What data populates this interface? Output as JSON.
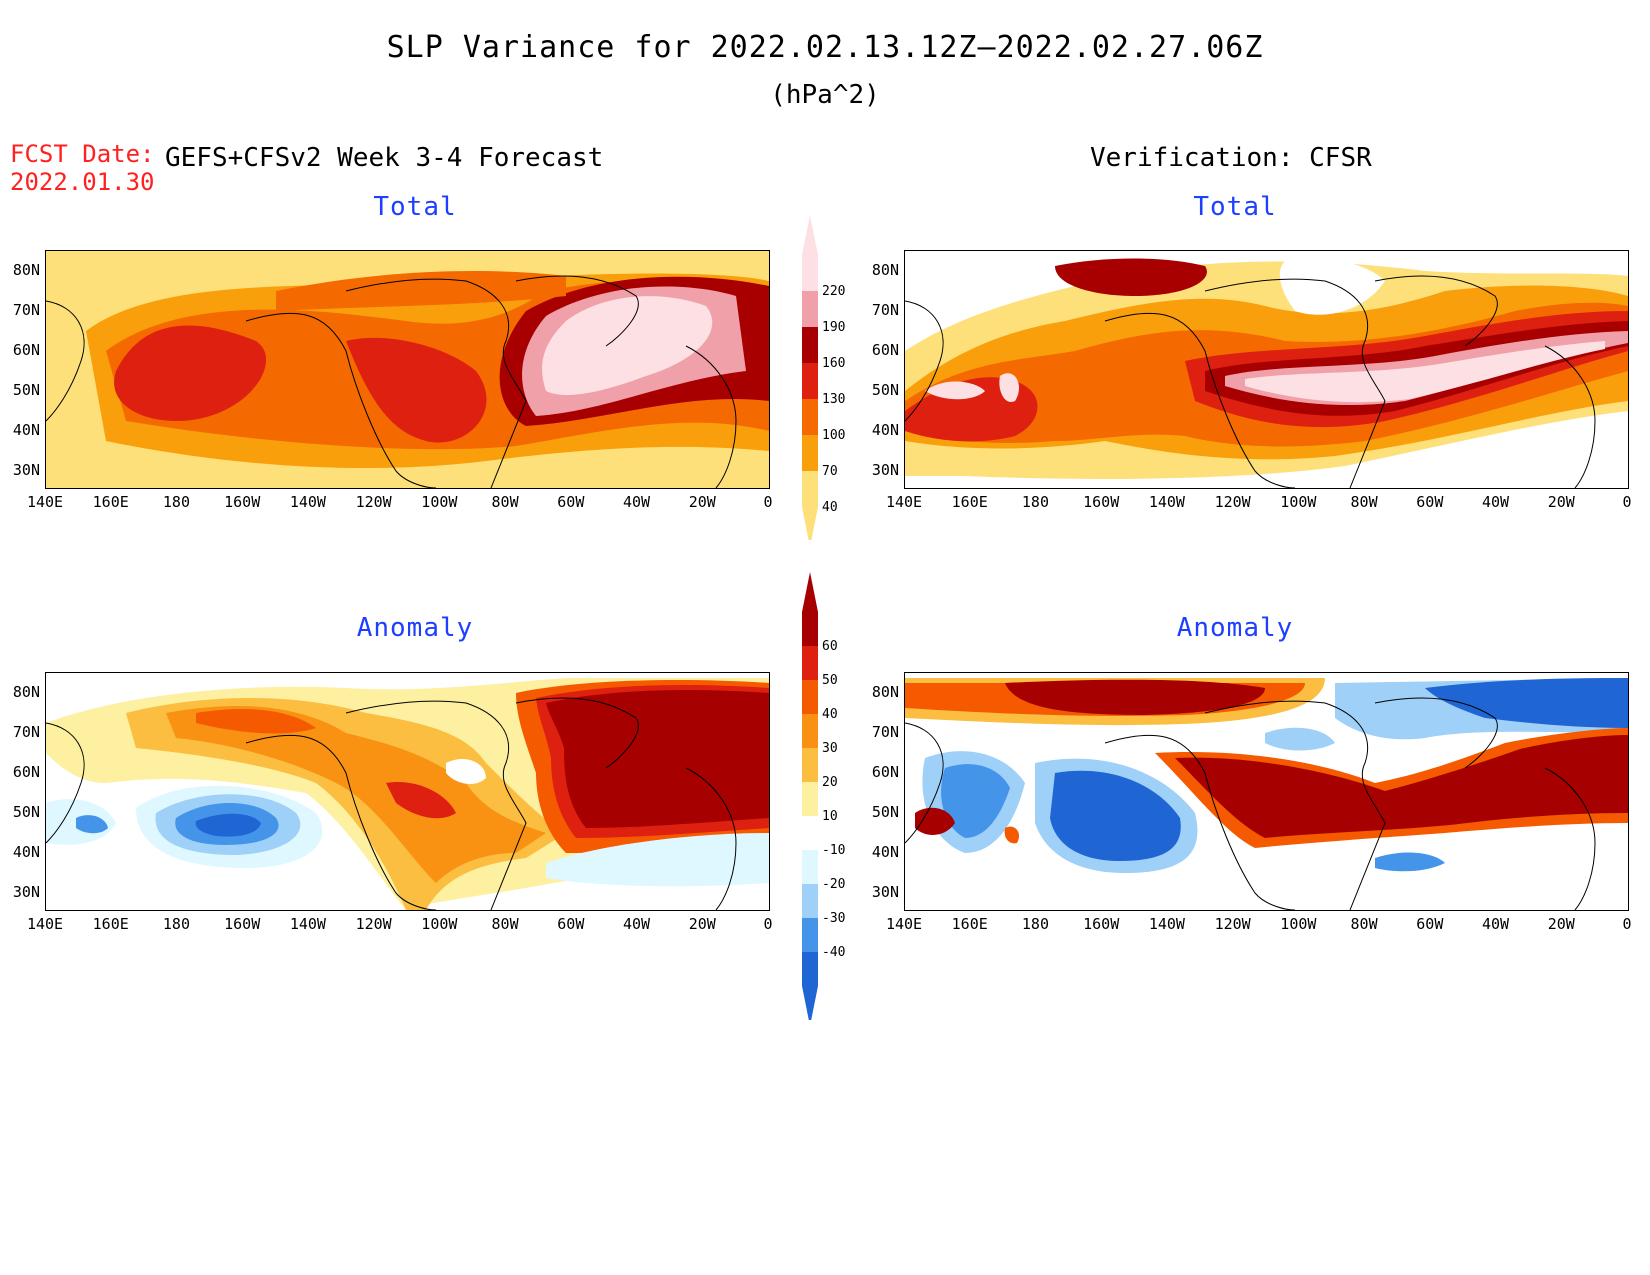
{
  "header": {
    "title": "SLP Variance for 2022.02.13.12Z–2022.02.27.06Z",
    "units": "(hPa^2)",
    "fcst_label": "FCST Date:",
    "fcst_date": "2022.01.30",
    "model_label": "GEFS+CFSv2 Week 3-4 Forecast",
    "verification_label": "Verification: CFSR"
  },
  "panels": {
    "forecast_total_title": "Total",
    "verification_total_title": "Total",
    "forecast_anomaly_title": "Anomaly",
    "verification_anomaly_title": "Anomaly"
  },
  "axes": {
    "lat_ticks": [
      "80N",
      "70N",
      "60N",
      "50N",
      "40N",
      "30N"
    ],
    "lon_ticks": [
      "140E",
      "160E",
      "180",
      "160W",
      "140W",
      "120W",
      "100W",
      "80W",
      "60W",
      "40W",
      "20W",
      "0"
    ]
  },
  "colorbars": {
    "total": {
      "labels": [
        "220",
        "190",
        "160",
        "130",
        "100",
        "70",
        "40"
      ],
      "colors": [
        "#fde0e4",
        "#f0a0a8",
        "#a80000",
        "#dd2010",
        "#f56a00",
        "#fa9f0c",
        "#fde07a"
      ]
    },
    "anomaly": {
      "labels": [
        "60",
        "50",
        "40",
        "30",
        "20",
        "10",
        "-10",
        "-20",
        "-30",
        "-40"
      ],
      "colors": [
        "#a60000",
        "#dd2010",
        "#f55a00",
        "#f99212",
        "#fbbe40",
        "#fdf0a0",
        "#ffffff",
        "#dff7ff",
        "#9fd0f8",
        "#4494ea",
        "#1f65d4"
      ]
    }
  }
}
